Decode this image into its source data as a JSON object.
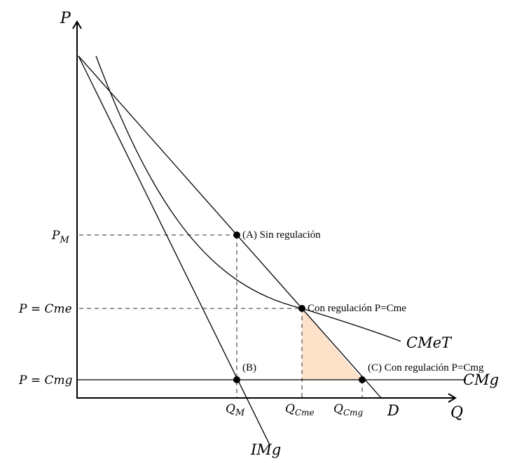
{
  "axes": {
    "y_label": "P",
    "x_label": "Q"
  },
  "price_labels": {
    "pm_main": "P",
    "pm_sub": "M",
    "cme": "P = Cme",
    "cmg": "P = Cmg"
  },
  "quantity_labels": {
    "qm_main": "Q",
    "qm_sub": "M",
    "qcme_main": "Q",
    "qcme_sub": "Cme",
    "qcmg_main": "Q",
    "qcmg_sub": "Cmg"
  },
  "curve_labels": {
    "demand": "D",
    "marginal_revenue": "IMg",
    "average_cost": "CMeT",
    "marginal_cost": "CMg"
  },
  "points": {
    "a": "(A) Sin regulación",
    "b": "(B)",
    "cme": "Con regulación P=Cme",
    "c": "(C) Con regulación P=Cmg"
  },
  "colors": {
    "deadweight_fill": "#fde1c8",
    "line": "#000000",
    "guide": "#777777"
  }
}
